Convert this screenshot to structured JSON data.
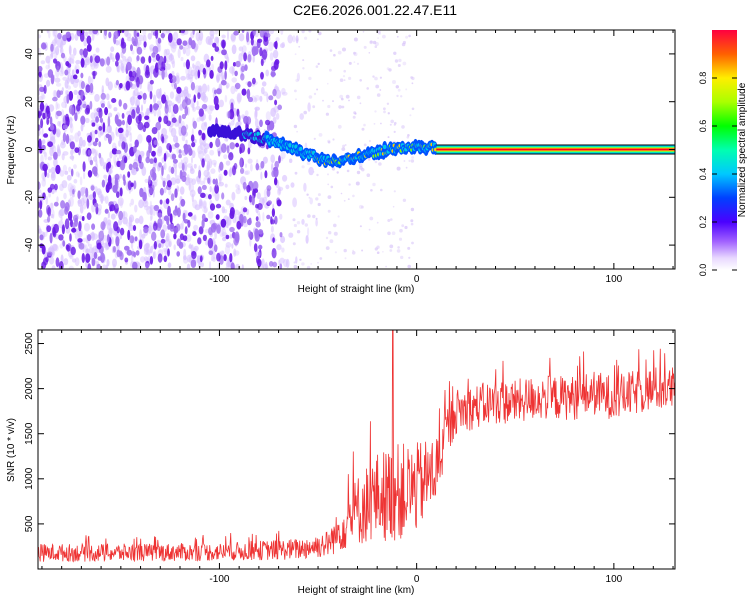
{
  "page_title": "C2E6.2026.001.22.47.E11",
  "chart_data": [
    {
      "type": "heatmap",
      "title": "C2E6.2026.001.22.47.E11",
      "xlabel": "Height of straight line (km)",
      "ylabel": "Frequency (Hz)",
      "xlim": [
        -192,
        131
      ],
      "ylim": [
        -50,
        50
      ],
      "xticks": [
        -100,
        0,
        100
      ],
      "xtick_labels": [
        "-100",
        "0",
        "100"
      ],
      "yticks": [
        -40,
        -20,
        0,
        20,
        40
      ],
      "ytick_labels": [
        "-40",
        "-20",
        "0",
        "20",
        "40"
      ],
      "colorbar": {
        "label": "Normalized spectral amplitude",
        "range": [
          0,
          1
        ],
        "ticks": [
          0.0,
          0.2,
          0.4,
          0.6,
          0.8
        ],
        "tick_labels": [
          "0.0",
          "0.2",
          "0.4",
          "0.6",
          "0.8"
        ]
      },
      "noise_region_x": [
        -192,
        -47
      ],
      "signal_trace": {
        "x": [
          -105,
          -95,
          -85,
          -75,
          -65,
          -55,
          -45,
          -35,
          -25,
          -15,
          -5,
          5,
          10
        ],
        "y": [
          8,
          7,
          6,
          4,
          1,
          -2,
          -5,
          -4,
          -2,
          0,
          1,
          1,
          1
        ]
      },
      "constant_line": {
        "x_start": 10,
        "x_end": 131,
        "y": 0
      }
    },
    {
      "type": "line",
      "xlabel": "Height of straight line (km)",
      "ylabel": "SNR (10 * v/v)",
      "xlim": [
        -192,
        131
      ],
      "ylim": [
        0,
        2650
      ],
      "xticks": [
        -100,
        0,
        100
      ],
      "xtick_labels": [
        "-100",
        "0",
        "100"
      ],
      "yticks": [
        500,
        1000,
        1500,
        2000,
        2500
      ],
      "ytick_labels": [
        "500",
        "1000",
        "1500",
        "2000",
        "2500"
      ],
      "series": [
        {
          "name": "SNR",
          "color": "#ee3333",
          "envelope_x": [
            -192,
            -150,
            -100,
            -60,
            -45,
            -38,
            -30,
            -20,
            -10,
            0,
            10,
            15,
            20,
            30,
            40,
            50,
            60,
            70,
            80,
            90,
            100,
            110,
            120,
            131
          ],
          "envelope_mean": [
            180,
            180,
            190,
            220,
            280,
            450,
            650,
            800,
            850,
            900,
            1100,
            1500,
            1750,
            1800,
            1850,
            1850,
            1900,
            1900,
            1900,
            1950,
            1900,
            1950,
            2000,
            2000
          ],
          "envelope_spread": [
            100,
            100,
            100,
            120,
            150,
            250,
            400,
            500,
            550,
            500,
            400,
            300,
            250,
            250,
            250,
            250,
            250,
            250,
            250,
            250,
            250,
            250,
            250,
            250
          ],
          "peak": {
            "x": -12,
            "y": 2650
          }
        }
      ]
    }
  ]
}
